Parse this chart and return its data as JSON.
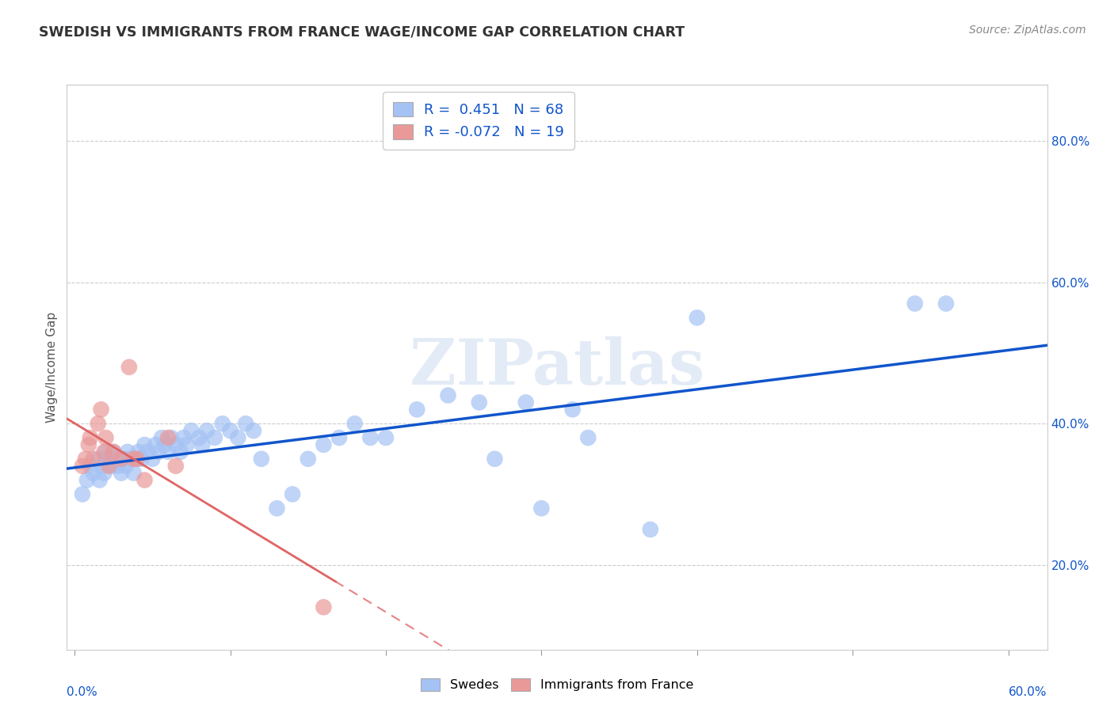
{
  "title": "SWEDISH VS IMMIGRANTS FROM FRANCE WAGE/INCOME GAP CORRELATION CHART",
  "source": "Source: ZipAtlas.com",
  "ylabel": "Wage/Income Gap",
  "x_min": -0.005,
  "x_max": 0.625,
  "y_min": 0.08,
  "y_max": 0.88,
  "blue_R": "0.451",
  "blue_N": "68",
  "pink_R": "-0.072",
  "pink_N": "19",
  "blue_color": "#a4c2f4",
  "pink_color": "#ea9999",
  "blue_line_color": "#1155cc",
  "pink_line_color": "#e06666",
  "watermark": "ZIPatlas",
  "blue_points_x": [
    0.005,
    0.008,
    0.01,
    0.012,
    0.015,
    0.016,
    0.018,
    0.019,
    0.02,
    0.02,
    0.022,
    0.024,
    0.025,
    0.027,
    0.028,
    0.03,
    0.031,
    0.033,
    0.034,
    0.035,
    0.038,
    0.04,
    0.041,
    0.043,
    0.045,
    0.047,
    0.05,
    0.052,
    0.054,
    0.056,
    0.058,
    0.06,
    0.062,
    0.065,
    0.068,
    0.07,
    0.072,
    0.075,
    0.08,
    0.082,
    0.085,
    0.09,
    0.095,
    0.1,
    0.105,
    0.11,
    0.115,
    0.12,
    0.13,
    0.14,
    0.15,
    0.16,
    0.17,
    0.18,
    0.19,
    0.2,
    0.22,
    0.24,
    0.26,
    0.27,
    0.29,
    0.3,
    0.32,
    0.33,
    0.37,
    0.4,
    0.54,
    0.56
  ],
  "blue_points_y": [
    0.3,
    0.32,
    0.34,
    0.33,
    0.35,
    0.32,
    0.34,
    0.33,
    0.35,
    0.36,
    0.35,
    0.34,
    0.36,
    0.35,
    0.34,
    0.33,
    0.35,
    0.34,
    0.36,
    0.35,
    0.33,
    0.35,
    0.36,
    0.35,
    0.37,
    0.36,
    0.35,
    0.37,
    0.36,
    0.38,
    0.37,
    0.36,
    0.38,
    0.37,
    0.36,
    0.38,
    0.37,
    0.39,
    0.38,
    0.37,
    0.39,
    0.38,
    0.4,
    0.39,
    0.38,
    0.4,
    0.39,
    0.35,
    0.28,
    0.3,
    0.35,
    0.37,
    0.38,
    0.4,
    0.38,
    0.38,
    0.42,
    0.44,
    0.43,
    0.35,
    0.43,
    0.28,
    0.42,
    0.38,
    0.25,
    0.55,
    0.57,
    0.57
  ],
  "pink_points_x": [
    0.005,
    0.007,
    0.009,
    0.01,
    0.012,
    0.015,
    0.017,
    0.019,
    0.02,
    0.022,
    0.025,
    0.03,
    0.035,
    0.038,
    0.04,
    0.045,
    0.06,
    0.065,
    0.16
  ],
  "pink_points_y": [
    0.34,
    0.35,
    0.37,
    0.38,
    0.35,
    0.4,
    0.42,
    0.36,
    0.38,
    0.34,
    0.36,
    0.35,
    0.48,
    0.35,
    0.35,
    0.32,
    0.38,
    0.34,
    0.14
  ]
}
